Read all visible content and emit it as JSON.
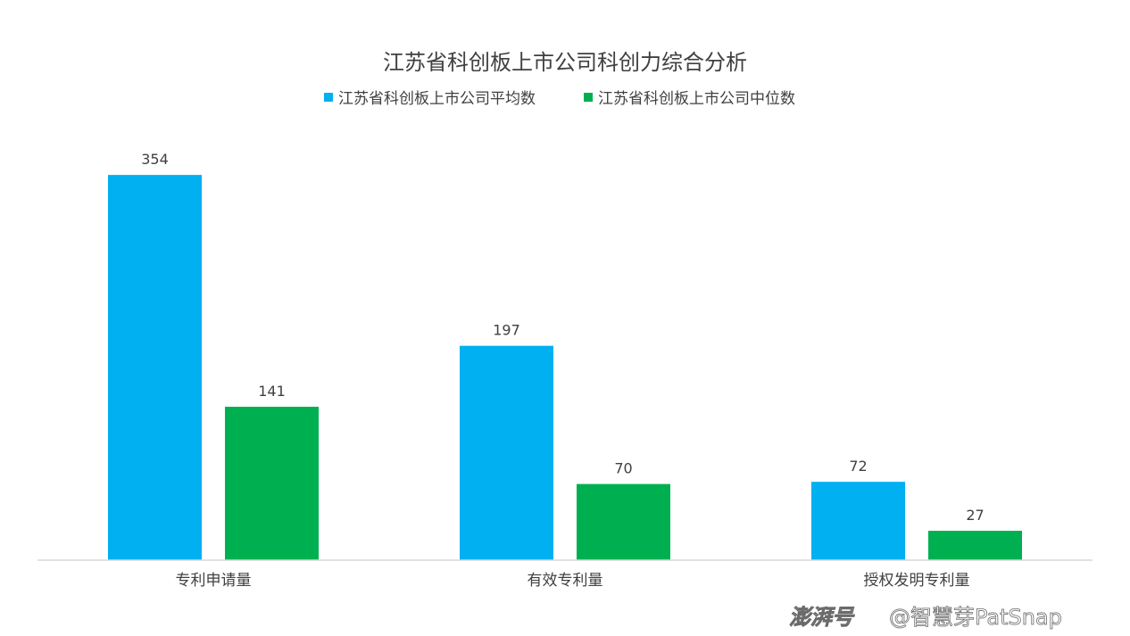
{
  "chart_data": {
    "type": "bar",
    "title": "江苏省科创板上市公司科创力综合分析",
    "categories": [
      "专利申请量",
      "有效专利量",
      "授权发明专利量"
    ],
    "series": [
      {
        "name": "江苏省科创板上市公司平均数",
        "values": [
          354,
          197,
          72
        ],
        "color": "#00b0f0"
      },
      {
        "name": "江苏省科创板上市公司中位数",
        "values": [
          141,
          70,
          27
        ],
        "color": "#00b050"
      }
    ],
    "ylim": [
      0,
      400
    ],
    "grid": false,
    "legend_position": "top-center",
    "data_labels": true
  },
  "watermark": {
    "logo_text": "澎湃号",
    "text": "@智慧芽PatSnap"
  }
}
